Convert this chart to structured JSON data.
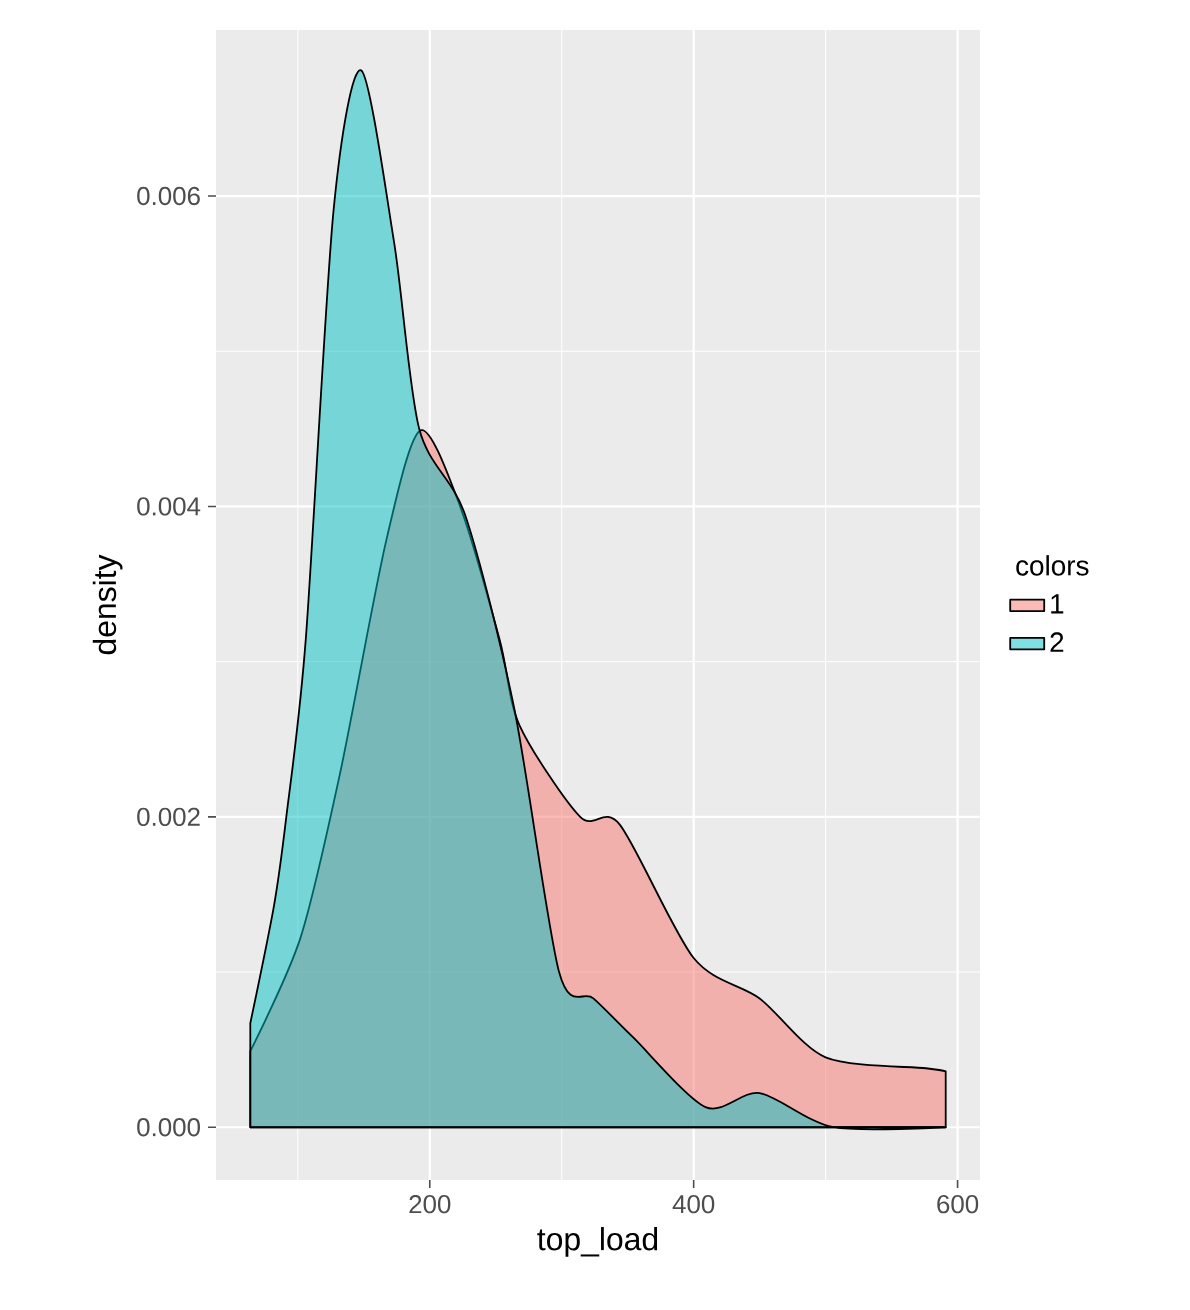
{
  "chart_data": {
    "type": "area",
    "xlabel": "top_load",
    "ylabel": "density",
    "legend_title": "colors",
    "xlim": [
      38,
      617
    ],
    "ylim": [
      -0.00034,
      0.00707
    ],
    "xticks": [
      200,
      400,
      600
    ],
    "yticks": [
      {
        "value": 0,
        "label": "0.000"
      },
      {
        "value": 0.002,
        "label": "0.002"
      },
      {
        "value": 0.004,
        "label": "0.004"
      },
      {
        "value": 0.006,
        "label": "0.006"
      }
    ],
    "grid": true,
    "legend": "right",
    "series": [
      {
        "name": "1",
        "color": "#f8766d",
        "x": [
          64,
          102,
          132,
          167,
          193,
          223,
          253,
          268,
          314,
          344,
          400,
          450,
          500,
          576,
          591
        ],
        "values": [
          0.00049,
          0.00122,
          0.00228,
          0.00378,
          0.00449,
          0.004,
          0.00314,
          0.00259,
          0.002,
          0.00195,
          0.00109,
          0.00083,
          0.00045,
          0.00038,
          0.00036
        ]
      },
      {
        "name": "2",
        "color": "#00bfc4",
        "x": [
          64,
          82,
          91,
          106,
          127,
          148,
          173,
          192,
          227,
          264,
          298,
          324,
          354,
          409,
          450,
          506,
          591
        ],
        "values": [
          0.00067,
          0.00143,
          0.00198,
          0.00314,
          0.0059,
          0.00681,
          0.0057,
          0.0045,
          0.00394,
          0.0027,
          0.001,
          0.00083,
          0.00058,
          0.00013,
          0.00022,
          0.0,
          0.0
        ]
      }
    ]
  }
}
